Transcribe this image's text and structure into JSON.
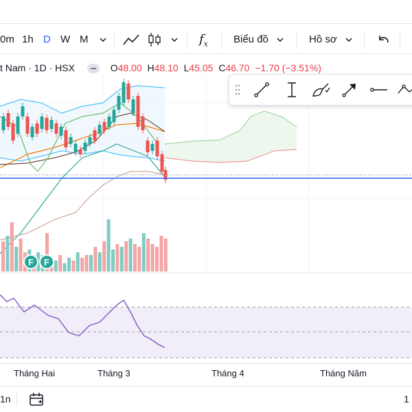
{
  "toolbar": {
    "timeframes": [
      "0m",
      "1h",
      "D",
      "W",
      "M"
    ],
    "chart_type_label": "Biểu đồ",
    "profile_label": "Hồ sơ",
    "fx_symbol": "f",
    "fx_sub": "x"
  },
  "legend": {
    "symbol_text": "t Nam · 1D · HSX",
    "open_label": "O",
    "open": "48.00",
    "high_label": "H",
    "high": "48.10",
    "low_label": "L",
    "low": "45.05",
    "close_label": "C",
    "close": "46.70",
    "change": "−1.70 (−3.51%)"
  },
  "drawing_tools": [
    "trend-line-icon",
    "vertical-measure-icon",
    "brush-icon",
    "arrow-icon",
    "horizontal-ray-icon",
    "path-icon"
  ],
  "xaxis": {
    "labels": [
      "Tháng Hai",
      "Tháng 3",
      "Tháng 4",
      "Tháng Năm"
    ]
  },
  "markers": [
    "F",
    "F"
  ],
  "bottom": {
    "range_label": "1n",
    "right_label": "1"
  },
  "colors": {
    "up": "#26a69a",
    "down": "#ef5350",
    "line": "#2962ff",
    "rsi": "#7e57c2"
  },
  "chart_data": {
    "type": "candlestick",
    "ohlc_last": {
      "open": 48.0,
      "high": 48.1,
      "low": 45.05,
      "close": 46.7
    },
    "change": -1.7,
    "change_pct": -3.51,
    "volume_up_down": [
      "d",
      "u",
      "d",
      "u",
      "d",
      "d",
      "u",
      "d",
      "u",
      "u",
      "d",
      "d",
      "u",
      "d",
      "u",
      "u",
      "d",
      "u",
      "d",
      "d",
      "u",
      "d",
      "u",
      "d",
      "u",
      "u",
      "d",
      "u",
      "d",
      "u",
      "d",
      "d",
      "u",
      "d",
      "d",
      "d",
      "d",
      "d"
    ],
    "volume_rel": [
      0.55,
      0.65,
      0.9,
      0.45,
      0.6,
      0.35,
      0.4,
      0.3,
      0.35,
      0.3,
      0.7,
      0.25,
      0.2,
      0.3,
      0.15,
      0.25,
      0.2,
      0.35,
      0.25,
      0.3,
      0.3,
      0.45,
      0.35,
      0.55,
      0.95,
      0.4,
      0.5,
      0.45,
      0.55,
      0.6,
      0.5,
      0.45,
      0.7,
      0.6,
      0.5,
      0.45,
      0.65,
      0.6
    ],
    "rsi_levels": [
      70,
      50,
      30
    ]
  }
}
